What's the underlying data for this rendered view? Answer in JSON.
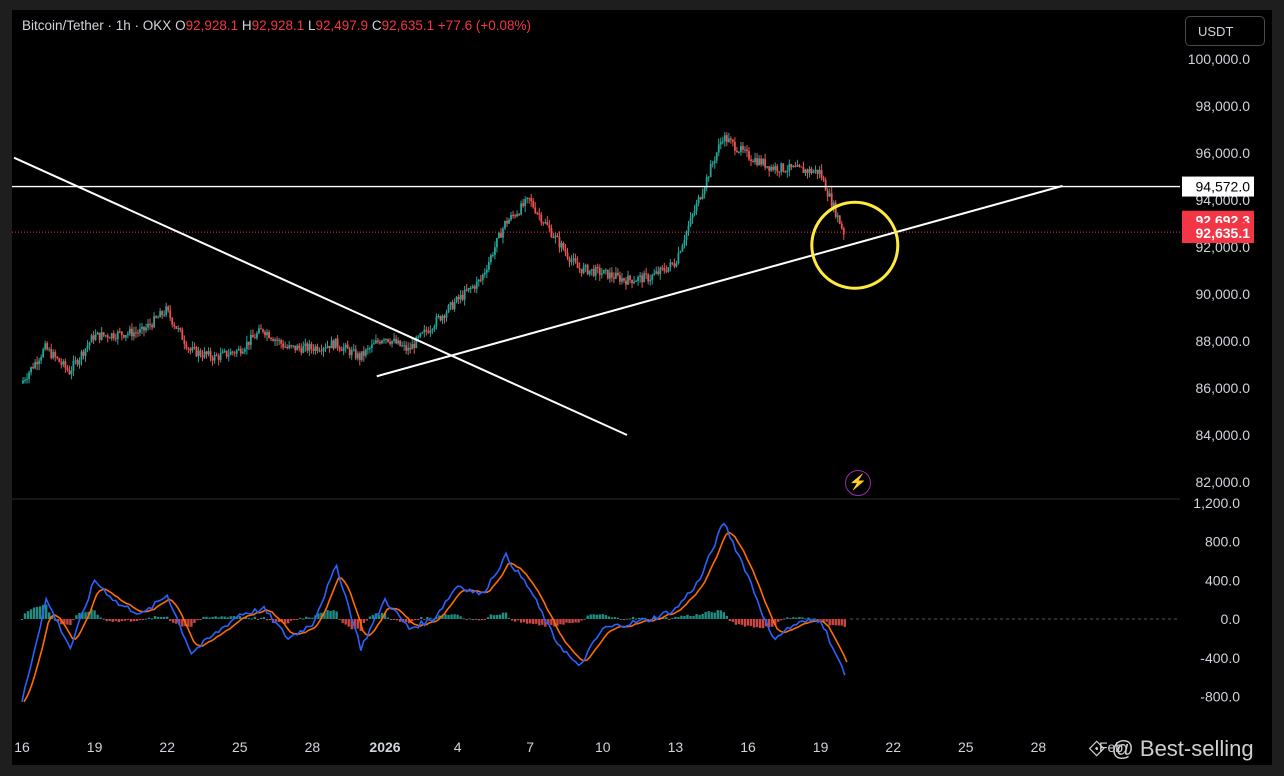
{
  "header": {
    "symbol": "Bitcoin/Tether · 1h · OKX",
    "o_label": "O",
    "o_value": "92,928.1",
    "h_label": "H",
    "h_value": "92,928.1",
    "l_label": "L",
    "l_value": "92,497.9",
    "c_label": "C",
    "c_value": "92,635.1",
    "change": "+77.6 (+0.08%)"
  },
  "currency_button": "USDT",
  "bolt_icon": "⚡",
  "watermark": "⟐ @ Best-selling",
  "colors": {
    "up": "#26a69a",
    "down": "#ef5350",
    "macd_line": "#2962ff",
    "signal_line": "#ff6d00",
    "highlight_circle": "#ffeb3b",
    "last_price_label": "#f23645"
  },
  "chart_data": [
    {
      "type": "candlestick",
      "title": "Bitcoin/Tether · 1h · OKX",
      "ylim": [
        81000,
        101000
      ],
      "y_ticks": [
        "100,000.0",
        "98,000.0",
        "96,000.0",
        "94,000.0",
        "92,000.0",
        "90,000.0",
        "88,000.0",
        "86,000.0",
        "84,000.0",
        "82,000.0"
      ],
      "x_ticks": [
        "16",
        "19",
        "22",
        "25",
        "28",
        "2026",
        "4",
        "7",
        "10",
        "13",
        "16",
        "19",
        "22",
        "25",
        "28",
        "Feb"
      ],
      "close_path": [
        {
          "date": "2025-12-16",
          "close": 86200
        },
        {
          "date": "2025-12-17",
          "close": 87700
        },
        {
          "date": "2025-12-18",
          "close": 86700
        },
        {
          "date": "2025-12-19",
          "close": 88200
        },
        {
          "date": "2025-12-20",
          "close": 88300
        },
        {
          "date": "2025-12-21",
          "close": 88400
        },
        {
          "date": "2025-12-22",
          "close": 89300
        },
        {
          "date": "2025-12-23",
          "close": 87600
        },
        {
          "date": "2025-12-24",
          "close": 87300
        },
        {
          "date": "2025-12-25",
          "close": 87600
        },
        {
          "date": "2025-12-26",
          "close": 88500
        },
        {
          "date": "2025-12-27",
          "close": 87700
        },
        {
          "date": "2025-12-28",
          "close": 87700
        },
        {
          "date": "2025-12-29",
          "close": 87900
        },
        {
          "date": "2025-12-30",
          "close": 87300
        },
        {
          "date": "2025-12-31",
          "close": 88200
        },
        {
          "date": "2026-01-01",
          "close": 87600
        },
        {
          "date": "2026-01-02",
          "close": 88700
        },
        {
          "date": "2026-01-03",
          "close": 89700
        },
        {
          "date": "2026-01-04",
          "close": 90600
        },
        {
          "date": "2026-01-05",
          "close": 93000
        },
        {
          "date": "2026-01-06",
          "close": 94000
        },
        {
          "date": "2026-01-07",
          "close": 92500
        },
        {
          "date": "2026-01-08",
          "close": 91100
        },
        {
          "date": "2026-01-09",
          "close": 90900
        },
        {
          "date": "2026-01-10",
          "close": 90600
        },
        {
          "date": "2026-01-11",
          "close": 90700
        },
        {
          "date": "2026-01-12",
          "close": 91300
        },
        {
          "date": "2026-01-13",
          "close": 94000
        },
        {
          "date": "2026-01-14",
          "close": 96700
        },
        {
          "date": "2026-01-15",
          "close": 95900
        },
        {
          "date": "2026-01-16",
          "close": 95400
        },
        {
          "date": "2026-01-17",
          "close": 95300
        },
        {
          "date": "2026-01-18",
          "close": 95200
        },
        {
          "date": "2026-01-19",
          "close": 92635
        }
      ],
      "annotations": {
        "horizontal_level": 94572.0,
        "current_price_dotted": 92635.1,
        "trendline_falling": [
          {
            "date": "2025-12-16",
            "price": 95800
          },
          {
            "date": "2026-01-10",
            "price": 84000
          }
        ],
        "trendline_rising": [
          {
            "date": "2025-12-30",
            "price": 86500
          },
          {
            "date": "2026-01-28",
            "price": 94600
          }
        ],
        "circle_center": {
          "date": "2026-01-19",
          "price": 92200
        }
      },
      "price_labels": [
        {
          "label": "94,572.0",
          "style": "level"
        },
        {
          "label": "92,692.3",
          "style": "last"
        },
        {
          "label": "92,635.1",
          "style": "last"
        }
      ]
    },
    {
      "type": "line",
      "title": "",
      "ylim": [
        -900,
        1200
      ],
      "y_ticks": [
        "1,200.0",
        "800.0",
        "400.0",
        "0.0",
        "-400.0",
        "-800.0"
      ],
      "series": [
        {
          "name": "",
          "values_path": [
            {
              "date": "2025-12-16",
              "v": -850
            },
            {
              "date": "2025-12-17",
              "v": 200
            },
            {
              "date": "2025-12-18",
              "v": -300
            },
            {
              "date": "2025-12-19",
              "v": 400
            },
            {
              "date": "2025-12-20",
              "v": 150
            },
            {
              "date": "2025-12-21",
              "v": 50
            },
            {
              "date": "2025-12-22",
              "v": 250
            },
            {
              "date": "2025-12-23",
              "v": -350
            },
            {
              "date": "2025-12-24",
              "v": -150
            },
            {
              "date": "2025-12-25",
              "v": 50
            },
            {
              "date": "2025-12-26",
              "v": 100
            },
            {
              "date": "2025-12-27",
              "v": -200
            },
            {
              "date": "2025-12-28",
              "v": -50
            },
            {
              "date": "2025-12-29",
              "v": 550
            },
            {
              "date": "2025-12-30",
              "v": -300
            },
            {
              "date": "2025-12-31",
              "v": 200
            },
            {
              "date": "2026-01-01",
              "v": -100
            },
            {
              "date": "2026-01-02",
              "v": 0
            },
            {
              "date": "2026-01-03",
              "v": 350
            },
            {
              "date": "2026-01-04",
              "v": 250
            },
            {
              "date": "2026-01-05",
              "v": 650
            },
            {
              "date": "2026-01-06",
              "v": 300
            },
            {
              "date": "2026-01-07",
              "v": -200
            },
            {
              "date": "2026-01-08",
              "v": -500
            },
            {
              "date": "2026-01-09",
              "v": -100
            },
            {
              "date": "2026-01-10",
              "v": -50
            },
            {
              "date": "2026-01-11",
              "v": 0
            },
            {
              "date": "2026-01-12",
              "v": 100
            },
            {
              "date": "2026-01-13",
              "v": 400
            },
            {
              "date": "2026-01-14",
              "v": 1000
            },
            {
              "date": "2026-01-15",
              "v": 450
            },
            {
              "date": "2026-01-16",
              "v": -200
            },
            {
              "date": "2026-01-17",
              "v": -50
            },
            {
              "date": "2026-01-18",
              "v": 0
            },
            {
              "date": "2026-01-19",
              "v": -580
            }
          ]
        }
      ]
    }
  ]
}
